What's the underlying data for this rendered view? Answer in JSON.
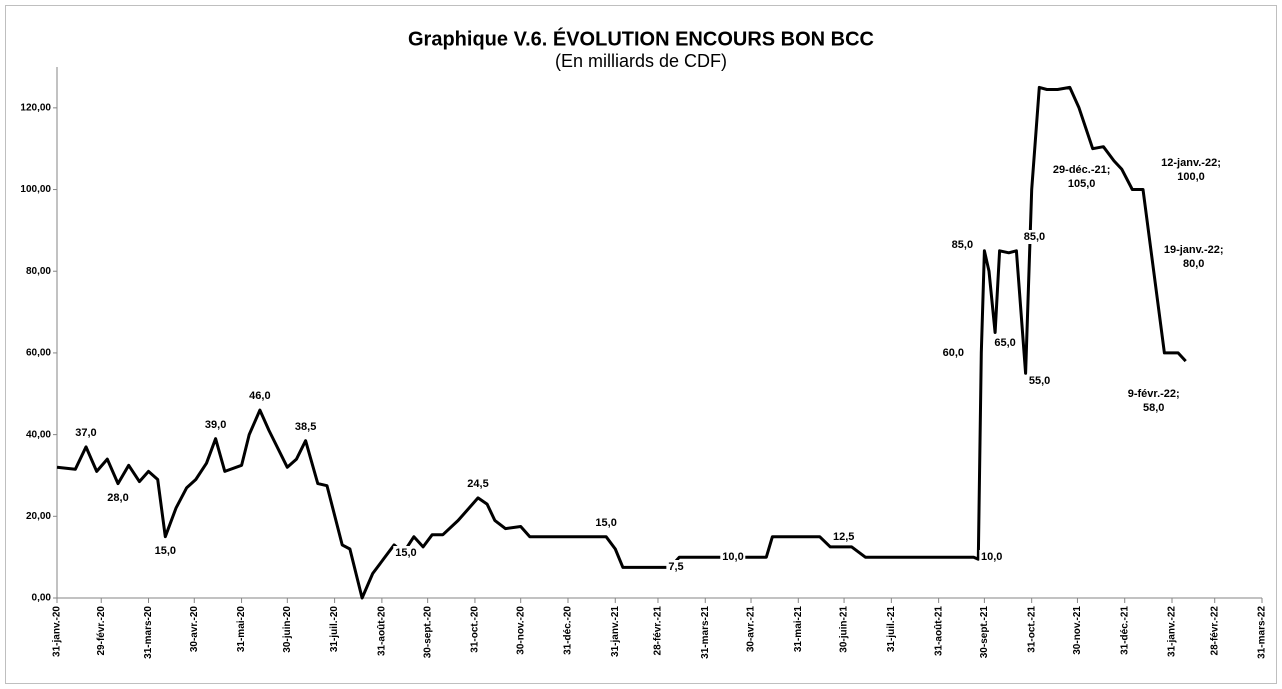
{
  "chart_data": {
    "type": "line",
    "title": "Graphique V.6. ÉVOLUTION ENCOURS BON BCC",
    "subtitle": "(En milliards de CDF)",
    "x": [
      "2020-01-31",
      "2020-02-12",
      "2020-02-19",
      "2020-02-26",
      "2020-03-04",
      "2020-03-11",
      "2020-03-18",
      "2020-03-25",
      "2020-03-31",
      "2020-04-06",
      "2020-04-11",
      "2020-04-18",
      "2020-04-25",
      "2020-05-01",
      "2020-05-08",
      "2020-05-14",
      "2020-05-20",
      "2020-05-31",
      "2020-06-05",
      "2020-06-12",
      "2020-06-18",
      "2020-06-30",
      "2020-07-06",
      "2020-07-12",
      "2020-07-20",
      "2020-07-26",
      "2020-08-05",
      "2020-08-10",
      "2020-08-18",
      "2020-08-25",
      "2020-09-08",
      "2020-09-14",
      "2020-09-21",
      "2020-09-27",
      "2020-10-03",
      "2020-10-10",
      "2020-10-20",
      "2020-11-02",
      "2020-11-08",
      "2020-11-13",
      "2020-11-20",
      "2020-11-30",
      "2020-12-06",
      "2020-12-14",
      "2020-12-31",
      "2021-01-25",
      "2021-01-31",
      "2021-02-05",
      "2021-02-12",
      "2021-02-28",
      "2021-03-08",
      "2021-03-14",
      "2021-03-31",
      "2021-04-30",
      "2021-05-10",
      "2021-05-14",
      "2021-05-31",
      "2021-06-14",
      "2021-06-21",
      "2021-06-30",
      "2021-07-05",
      "2021-07-14",
      "2021-07-31",
      "2021-08-31",
      "2021-09-23",
      "2021-09-26",
      "2021-09-28",
      "2021-09-30",
      "2021-10-03",
      "2021-10-07",
      "2021-10-10",
      "2021-10-16",
      "2021-10-21",
      "2021-10-24",
      "2021-10-27",
      "2021-10-31",
      "2021-11-05",
      "2021-11-10",
      "2021-11-17",
      "2021-11-25",
      "2021-12-01",
      "2021-12-10",
      "2021-12-17",
      "2021-12-24",
      "2021-12-29",
      "2022-01-05",
      "2022-01-12",
      "2022-01-19",
      "2022-01-26",
      "2022-01-31",
      "2022-02-04",
      "2022-02-09"
    ],
    "series": [
      {
        "name": "Encours Bon BCC",
        "color": "#000000",
        "values": [
          32,
          31.5,
          37,
          31,
          34,
          28,
          32.5,
          28.5,
          31,
          29,
          15,
          22,
          27,
          29,
          33,
          39,
          31,
          32.5,
          40,
          46,
          41,
          32,
          34,
          38.5,
          28,
          27.5,
          13,
          12,
          0,
          6,
          13,
          11,
          15,
          12.5,
          15.5,
          15.5,
          19,
          24.5,
          23,
          19,
          17,
          17.5,
          15,
          15,
          15,
          15,
          12,
          7.5,
          7.5,
          7.5,
          7.5,
          10,
          10,
          10,
          10,
          15,
          15,
          15,
          12.5,
          12.5,
          12.5,
          10,
          10,
          10,
          10,
          9.5,
          60,
          85,
          80,
          65,
          85,
          84.5,
          85,
          70,
          55,
          100,
          125,
          124.5,
          124.5,
          125,
          120,
          110,
          110.5,
          107,
          105,
          100,
          100,
          80,
          60,
          60,
          60,
          58
        ],
        "value_labels": [
          null,
          null,
          "37,0",
          null,
          null,
          "28,0",
          null,
          null,
          null,
          null,
          "15,0",
          null,
          null,
          null,
          null,
          "39,0",
          null,
          null,
          null,
          "46,0",
          null,
          null,
          null,
          "38,5",
          null,
          null,
          null,
          null,
          null,
          null,
          null,
          null,
          "15,0",
          null,
          null,
          null,
          null,
          "24,5",
          null,
          null,
          null,
          null,
          null,
          null,
          null,
          "15,0",
          null,
          null,
          null,
          "7,5",
          null,
          null,
          null,
          "10,0",
          null,
          null,
          null,
          null,
          null,
          null,
          "12,5",
          null,
          null,
          null,
          "10,0",
          null,
          "60,0",
          "85,0",
          null,
          "65,0",
          null,
          null,
          "85,0",
          null,
          "55,0",
          null,
          null,
          null,
          null,
          null,
          null,
          null,
          null,
          null,
          "29-déc.-21;\n105,0",
          null,
          "12-janv.-22;\n100,0",
          "19-janv.-22;\n80,0",
          null,
          null,
          null,
          "9-févr.-22;\n58,0"
        ]
      }
    ],
    "xlim": [
      "2020-01-31",
      "2022-03-31"
    ],
    "xticks": [
      {
        "value": "2020-01-31",
        "label": "31-janv.-20"
      },
      {
        "value": "2020-02-29",
        "label": "29-févr.-20"
      },
      {
        "value": "2020-03-31",
        "label": "31-mars-20"
      },
      {
        "value": "2020-04-30",
        "label": "30-avr.-20"
      },
      {
        "value": "2020-05-31",
        "label": "31-mai-20"
      },
      {
        "value": "2020-06-30",
        "label": "30-juin-20"
      },
      {
        "value": "2020-07-31",
        "label": "31-juil.-20"
      },
      {
        "value": "2020-08-31",
        "label": "31-août-20"
      },
      {
        "value": "2020-09-30",
        "label": "30-sept.-20"
      },
      {
        "value": "2020-10-31",
        "label": "31-oct.-20"
      },
      {
        "value": "2020-11-30",
        "label": "30-nov.-20"
      },
      {
        "value": "2020-12-31",
        "label": "31-déc.-20"
      },
      {
        "value": "2021-01-31",
        "label": "31-janv.-21"
      },
      {
        "value": "2021-02-28",
        "label": "28-févr.-21"
      },
      {
        "value": "2021-03-31",
        "label": "31-mars-21"
      },
      {
        "value": "2021-04-30",
        "label": "30-avr.-21"
      },
      {
        "value": "2021-05-31",
        "label": "31-mai-21"
      },
      {
        "value": "2021-06-30",
        "label": "30-juin-21"
      },
      {
        "value": "2021-07-31",
        "label": "31-juil.-21"
      },
      {
        "value": "2021-08-31",
        "label": "31-août-21"
      },
      {
        "value": "2021-09-30",
        "label": "30-sept.-21"
      },
      {
        "value": "2021-10-31",
        "label": "31-oct.-21"
      },
      {
        "value": "2021-11-30",
        "label": "30-nov.-21"
      },
      {
        "value": "2021-12-31",
        "label": "31-déc.-21"
      },
      {
        "value": "2022-01-31",
        "label": "31-janv.-22"
      },
      {
        "value": "2022-02-28",
        "label": "28-févr.-22"
      },
      {
        "value": "2022-03-31",
        "label": "31-mars-22"
      }
    ],
    "ylim": [
      0,
      130
    ],
    "yticks": [
      {
        "value": 0,
        "label": "0,00"
      },
      {
        "value": 20,
        "label": "20,00"
      },
      {
        "value": 40,
        "label": "40,00"
      },
      {
        "value": 60,
        "label": "60,00"
      },
      {
        "value": 80,
        "label": "80,00"
      },
      {
        "value": 100,
        "label": "100,00"
      },
      {
        "value": 120,
        "label": "120,00"
      }
    ],
    "grid": false
  }
}
